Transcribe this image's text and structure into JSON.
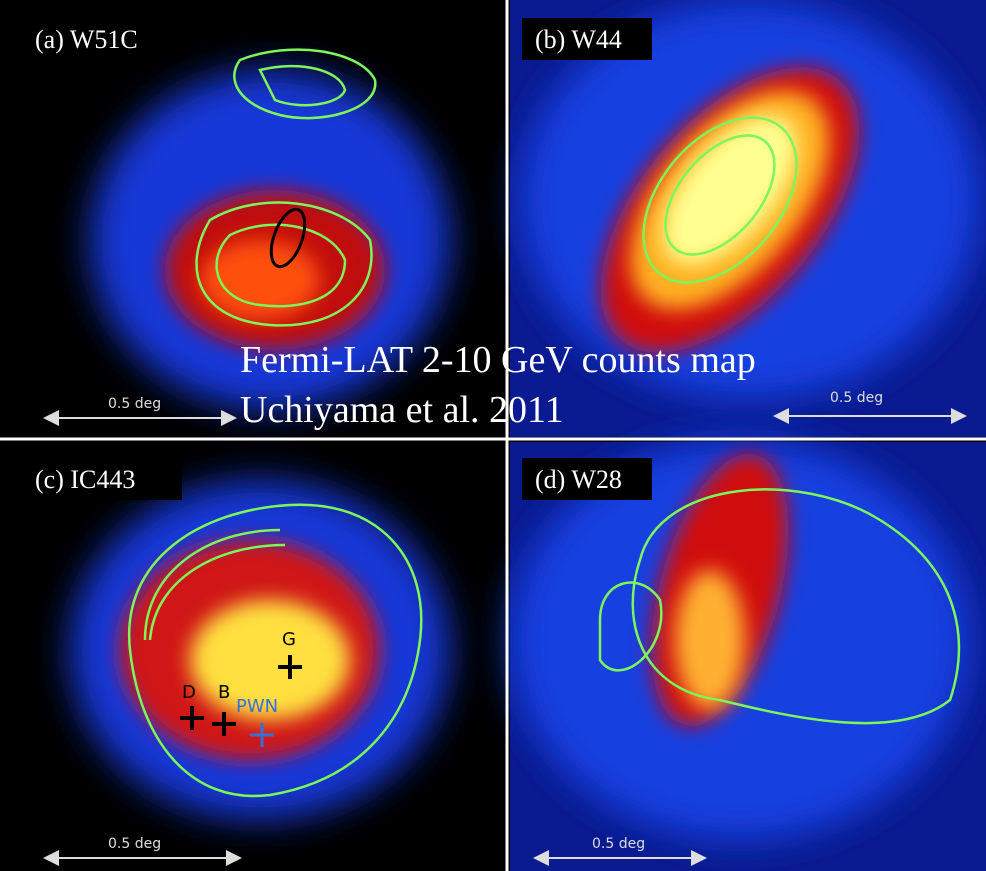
{
  "caption": {
    "lines": [
      "Fermi-LAT 2-10 GeV counts map",
      "Uchiyama et al. 2011"
    ]
  },
  "panels": [
    {
      "label": "(a) W51C",
      "scale": "0.5 deg"
    },
    {
      "label": "(b) W44",
      "scale": "0.5 deg"
    },
    {
      "label": "(c) IC443",
      "scale": "0.5 deg"
    },
    {
      "label": "(d) W28",
      "scale": "0.5 deg"
    }
  ],
  "markers": [
    "G",
    "D",
    "B",
    "PWN"
  ]
}
